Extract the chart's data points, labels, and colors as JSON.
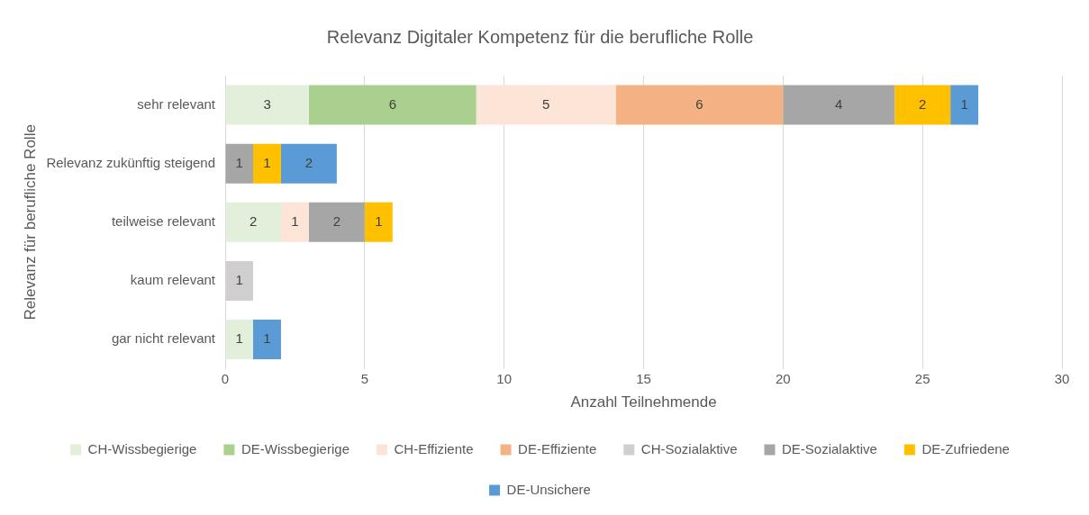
{
  "chart_data": {
    "type": "bar",
    "orientation": "horizontal",
    "stacked": true,
    "title": "Relevanz Digitaler Kompetenz für die berufliche Rolle",
    "xlabel": "Anzahl Teilnehmende",
    "ylabel": "Relevanz für berufliche Rolle",
    "categories": [
      "sehr relevant",
      "Relevanz zukünftig steigend",
      "teilweise relevant",
      "kaum relevant",
      "gar nicht relevant"
    ],
    "series": [
      {
        "name": "CH-Wissbegierige",
        "color": "#e2efda",
        "values": [
          3,
          null,
          2,
          null,
          1
        ]
      },
      {
        "name": "DE-Wissbegierige",
        "color": "#a9d08e",
        "values": [
          6,
          null,
          null,
          null,
          null
        ]
      },
      {
        "name": "CH-Effiziente",
        "color": "#fce4d6",
        "values": [
          5,
          null,
          1,
          null,
          null
        ]
      },
      {
        "name": "DE-Effiziente",
        "color": "#f4b183",
        "values": [
          6,
          null,
          null,
          null,
          null
        ]
      },
      {
        "name": "CH-Sozialaktive",
        "color": "#d0cece",
        "values": [
          null,
          null,
          null,
          1,
          null
        ]
      },
      {
        "name": "DE-Sozialaktive",
        "color": "#a6a6a6",
        "values": [
          4,
          1,
          2,
          null,
          null
        ]
      },
      {
        "name": "DE-Zufriedene",
        "color": "#ffc000",
        "values": [
          2,
          1,
          1,
          null,
          null
        ]
      },
      {
        "name": "DE-Unsichere",
        "color": "#5b9bd5",
        "values": [
          1,
          2,
          null,
          null,
          1
        ]
      }
    ],
    "xlim": [
      0,
      30
    ],
    "xticks": [
      0,
      5,
      10,
      15,
      20,
      25,
      30
    ],
    "grid": "x",
    "legend": "bottom",
    "data_labels": true
  }
}
